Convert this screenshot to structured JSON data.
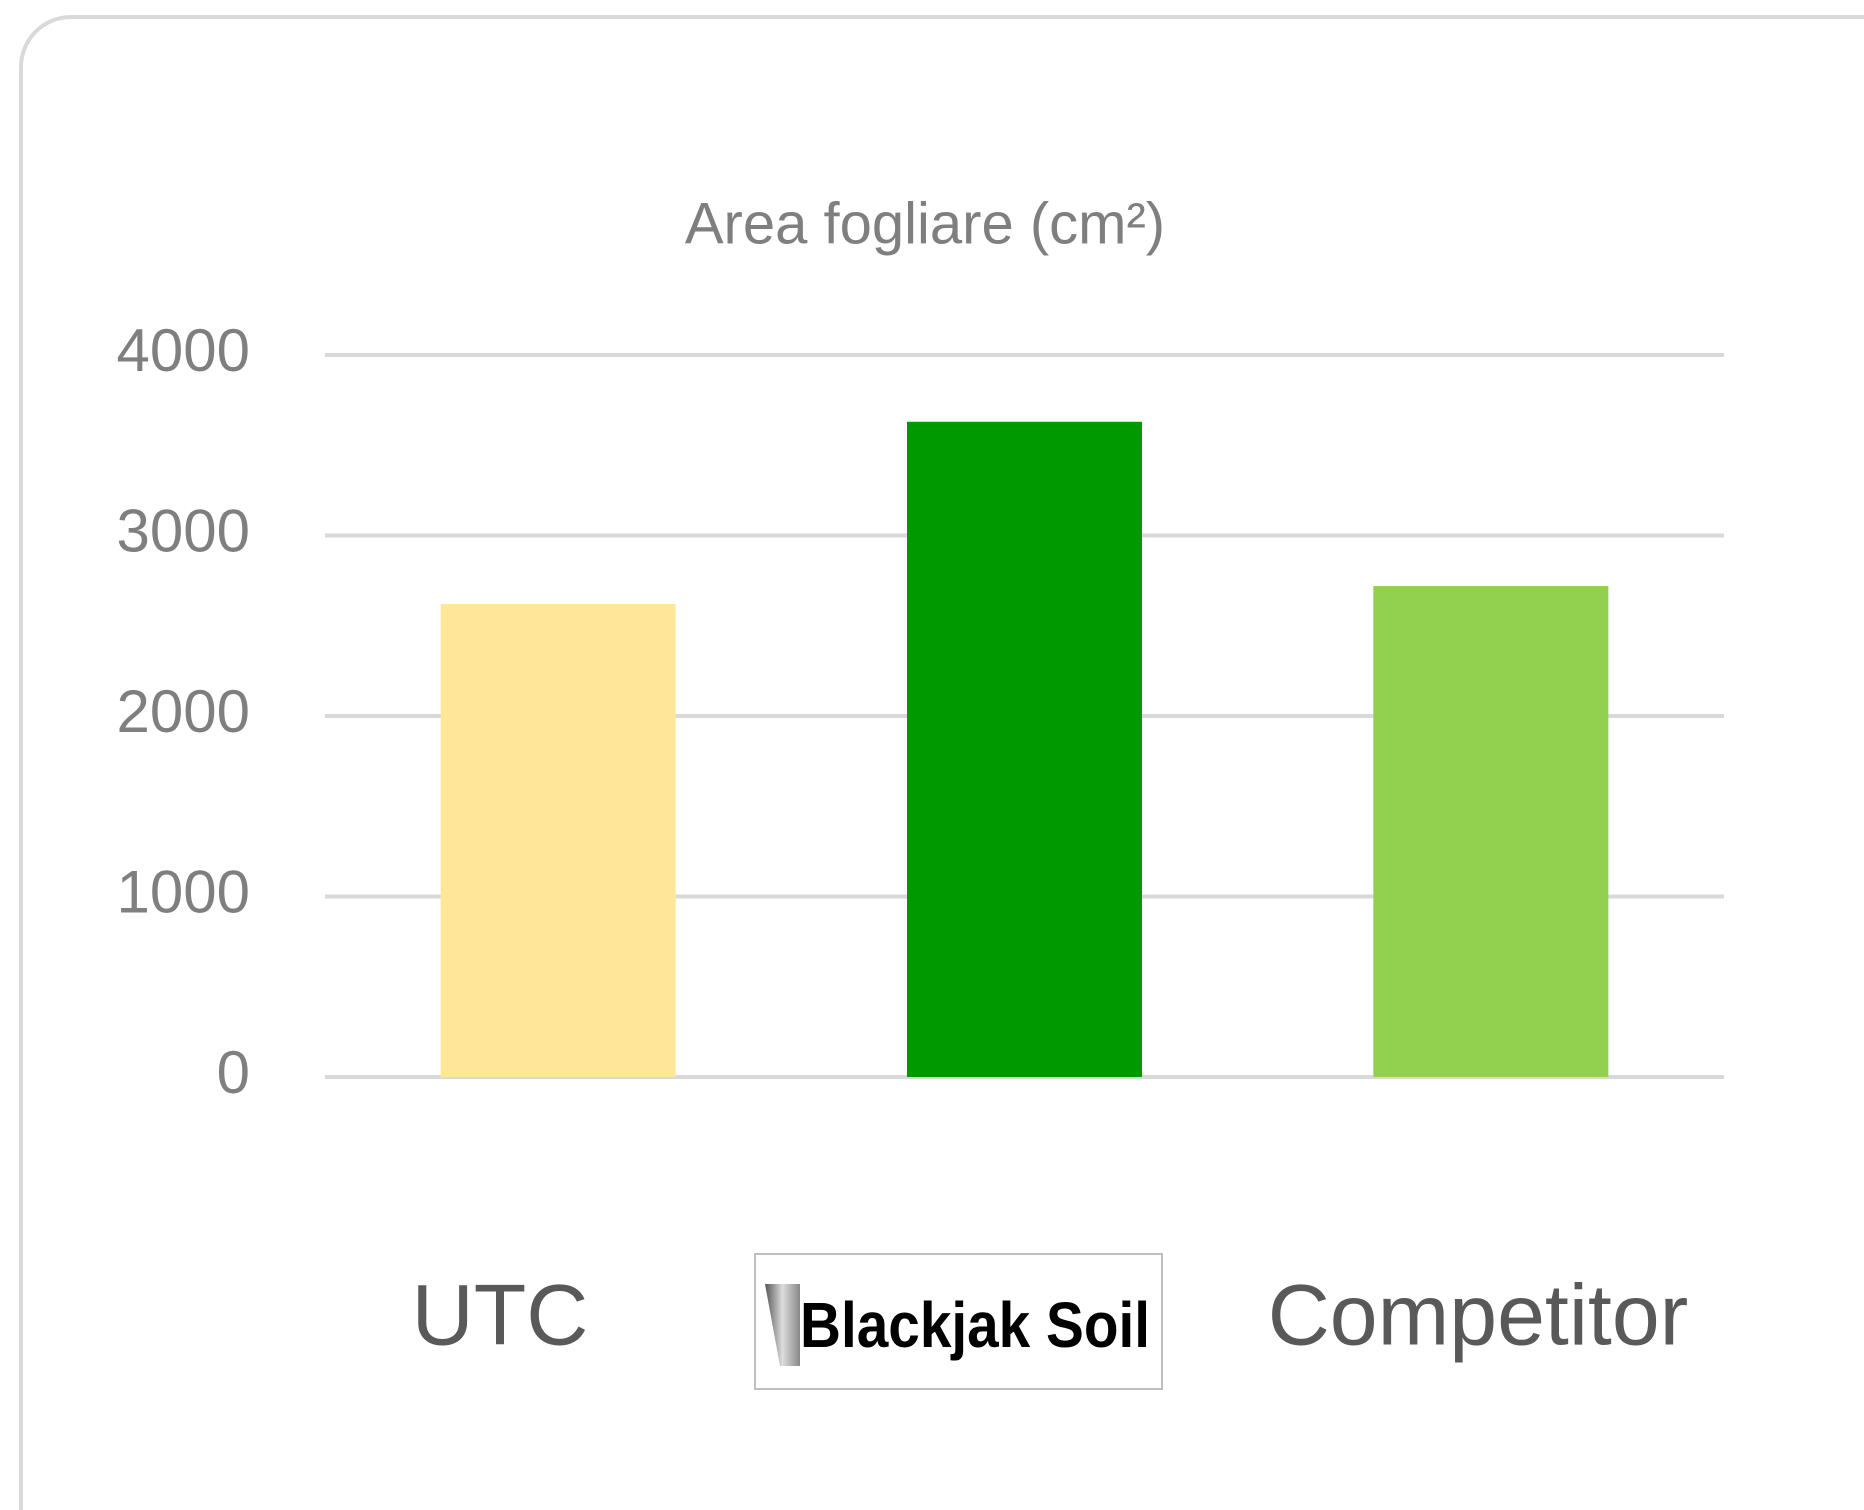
{
  "chart_data": {
    "type": "bar",
    "title": "Area fogliare (cm²)",
    "categories": [
      "UTC",
      "Blackjak Soil",
      "Competitor"
    ],
    "values": [
      2620,
      3630,
      2720
    ],
    "colors": [
      "#FFE699",
      "#009900",
      "#92D050"
    ],
    "ylim": [
      0,
      4000
    ],
    "yticks": [
      0,
      1000,
      2000,
      3000,
      4000
    ],
    "grid": true
  }
}
